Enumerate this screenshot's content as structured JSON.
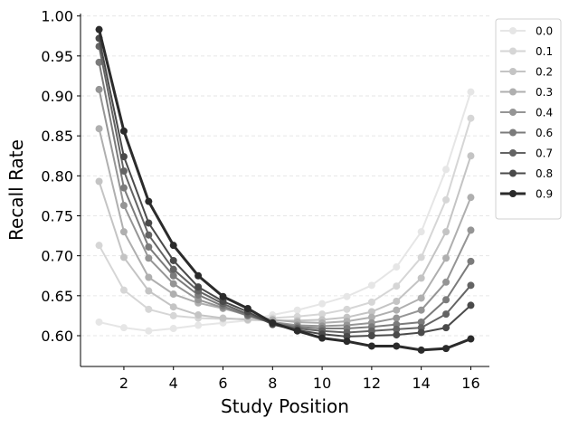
{
  "chart_data": {
    "type": "line",
    "title": "",
    "xlabel": "Study Position",
    "ylabel": "Recall Rate",
    "xlim": [
      0.25,
      16.75
    ],
    "ylim": [
      0.5615,
      1.003
    ],
    "xticks": [
      2,
      4,
      6,
      8,
      10,
      12,
      14,
      16
    ],
    "yticks": [
      0.6,
      0.65,
      0.7,
      0.75,
      0.8,
      0.85,
      0.9,
      0.95,
      1.0
    ],
    "ytick_labels": [
      "0.60",
      "0.65",
      "0.70",
      "0.75",
      "0.80",
      "0.85",
      "0.90",
      "0.95",
      "1.00"
    ],
    "grid": "horizontal dashed",
    "legend_position": "outside top-right",
    "x": [
      1,
      2,
      3,
      4,
      5,
      6,
      7,
      8,
      9,
      10,
      11,
      12,
      13,
      14,
      15,
      16
    ],
    "series": [
      {
        "name": "0.0",
        "color": "#e6e6e6",
        "values": [
          0.617,
          0.61,
          0.606,
          0.609,
          0.613,
          0.616,
          0.619,
          0.626,
          0.632,
          0.64,
          0.649,
          0.663,
          0.686,
          0.73,
          0.808,
          0.905
        ]
      },
      {
        "name": "0.1",
        "color": "#d6d6d6",
        "values": [
          0.713,
          0.657,
          0.633,
          0.625,
          0.622,
          0.621,
          0.621,
          0.622,
          0.624,
          0.627,
          0.633,
          0.642,
          0.662,
          0.698,
          0.77,
          0.872
        ]
      },
      {
        "name": "0.2",
        "color": "#c4c4c4",
        "values": [
          0.793,
          0.698,
          0.656,
          0.636,
          0.626,
          0.622,
          0.62,
          0.619,
          0.619,
          0.62,
          0.623,
          0.63,
          0.643,
          0.672,
          0.73,
          0.825
        ]
      },
      {
        "name": "0.3",
        "color": "#afafaf",
        "values": [
          0.859,
          0.73,
          0.673,
          0.652,
          0.641,
          0.634,
          0.626,
          0.62,
          0.617,
          0.616,
          0.618,
          0.623,
          0.632,
          0.647,
          0.697,
          0.773
        ]
      },
      {
        "name": "0.4",
        "color": "#959595",
        "values": [
          0.908,
          0.763,
          0.697,
          0.665,
          0.645,
          0.635,
          0.625,
          0.617,
          0.613,
          0.612,
          0.613,
          0.616,
          0.622,
          0.632,
          0.667,
          0.732
        ]
      },
      {
        "name": "0.6",
        "color": "#7b7b7b",
        "values": [
          0.942,
          0.785,
          0.711,
          0.675,
          0.651,
          0.637,
          0.625,
          0.616,
          0.611,
          0.609,
          0.609,
          0.611,
          0.614,
          0.617,
          0.645,
          0.693
        ]
      },
      {
        "name": "0.7",
        "color": "#646464",
        "values": [
          0.962,
          0.806,
          0.726,
          0.683,
          0.656,
          0.64,
          0.627,
          0.615,
          0.609,
          0.606,
          0.604,
          0.606,
          0.608,
          0.61,
          0.627,
          0.663
        ]
      },
      {
        "name": "0.8",
        "color": "#4a4a4a",
        "values": [
          0.972,
          0.824,
          0.741,
          0.694,
          0.661,
          0.643,
          0.63,
          0.614,
          0.607,
          0.602,
          0.599,
          0.6,
          0.601,
          0.604,
          0.61,
          0.638
        ]
      },
      {
        "name": "0.9",
        "color": "#2b2b2b",
        "bold": true,
        "values": [
          0.983,
          0.856,
          0.768,
          0.713,
          0.675,
          0.649,
          0.634,
          0.616,
          0.606,
          0.597,
          0.593,
          0.587,
          0.587,
          0.582,
          0.584,
          0.596
        ]
      }
    ]
  }
}
